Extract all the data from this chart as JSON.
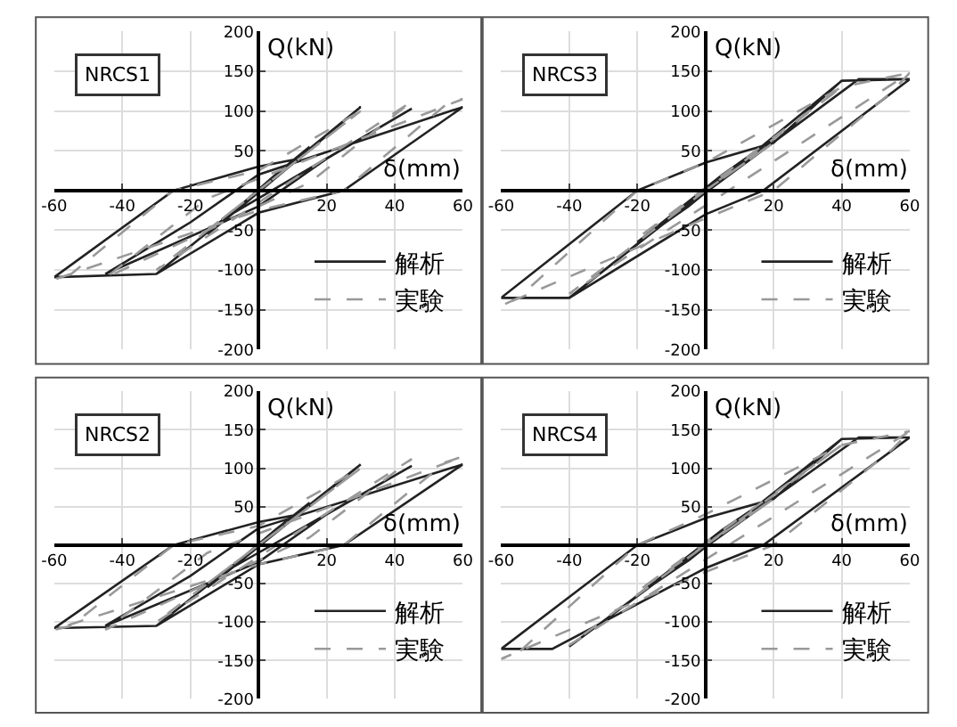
{
  "chart_data": [
    {
      "type": "line",
      "title": "NRCS1",
      "xlabel": "δ(mm)",
      "ylabel": "Q(kN)",
      "xlim": [
        -60,
        60
      ],
      "xticks": [
        -60,
        -40,
        -20,
        20,
        40,
        60
      ],
      "ylim": [
        -200,
        200
      ],
      "yticks": [
        -200,
        -150,
        -100,
        -50,
        50,
        100,
        150,
        200
      ],
      "grid": true,
      "legend": "bottom right",
      "series": [
        {
          "name": "解析",
          "color": "#222222",
          "line_style": "solid",
          "x": [
            0,
            15,
            5,
            -15,
            -5,
            30,
            10,
            -30,
            -10,
            45,
            20,
            0,
            -45,
            -20,
            0,
            60,
            25,
            0,
            -30,
            -60,
            -25,
            0,
            12,
            30
          ],
          "values": [
            0,
            55,
            20,
            -55,
            -20,
            105,
            35,
            -105,
            -35,
            103,
            40,
            -20,
            -105,
            -40,
            20,
            105,
            0,
            -28,
            -105,
            -109,
            0,
            30,
            40,
            105
          ]
        },
        {
          "name": "実験",
          "color": "#999999",
          "line_style": "dashed",
          "x": [
            0,
            15,
            -15,
            30,
            -30,
            45,
            15,
            -45,
            -15,
            60,
            55,
            25,
            0,
            -60,
            -55,
            -25,
            0,
            30
          ],
          "values": [
            0,
            50,
            -50,
            100,
            -100,
            112,
            10,
            -110,
            -10,
            115,
            108,
            0,
            -25,
            -112,
            -105,
            0,
            25,
            100
          ]
        }
      ]
    },
    {
      "type": "line",
      "title": "NRCS3",
      "xlabel": "δ(mm)",
      "ylabel": "Q(kN)",
      "xlim": [
        -60,
        60
      ],
      "xticks": [
        -60,
        -40,
        -20,
        20,
        40,
        60
      ],
      "ylim": [
        -200,
        200
      ],
      "yticks": [
        -200,
        -150,
        -100,
        -50,
        50,
        100,
        150,
        200
      ],
      "grid": true,
      "legend": "bottom right",
      "series": [
        {
          "name": "解析",
          "color": "#222222",
          "line_style": "solid",
          "x": [
            0,
            20,
            5,
            -20,
            -5,
            40,
            15,
            -40,
            -15,
            45,
            60,
            17,
            0,
            -40,
            -60,
            -20,
            0,
            20,
            40,
            60
          ],
          "values": [
            0,
            65,
            20,
            -65,
            -20,
            138,
            50,
            -135,
            -50,
            140,
            140,
            0,
            -30,
            -135,
            -135,
            0,
            35,
            60,
            138,
            140
          ]
        },
        {
          "name": "実験",
          "color": "#999999",
          "line_style": "dashed",
          "x": [
            0,
            20,
            -20,
            40,
            -40,
            60,
            55,
            20,
            0,
            -60,
            -55,
            -20,
            0,
            40,
            60
          ],
          "values": [
            0,
            60,
            -60,
            130,
            -130,
            148,
            125,
            0,
            -35,
            -145,
            -135,
            0,
            35,
            130,
            148
          ]
        }
      ]
    },
    {
      "type": "line",
      "title": "NRCS2",
      "xlabel": "δ(mm)",
      "ylabel": "Q(kN)",
      "xlim": [
        -60,
        60
      ],
      "xticks": [
        -60,
        -40,
        -20,
        20,
        40,
        60
      ],
      "ylim": [
        -200,
        200
      ],
      "yticks": [
        -200,
        -150,
        -100,
        -50,
        50,
        100,
        150,
        200
      ],
      "grid": true,
      "legend": "bottom right",
      "series": [
        {
          "name": "解析",
          "color": "#222222",
          "line_style": "solid",
          "x": [
            0,
            15,
            5,
            -15,
            -5,
            30,
            10,
            -30,
            -10,
            45,
            20,
            0,
            -45,
            -20,
            0,
            60,
            25,
            0,
            -30,
            -60,
            -25,
            0,
            12,
            30
          ],
          "values": [
            0,
            55,
            20,
            -55,
            -20,
            105,
            35,
            -105,
            -35,
            103,
            40,
            -22,
            -105,
            -40,
            22,
            105,
            0,
            -25,
            -105,
            -108,
            0,
            30,
            40,
            105
          ]
        },
        {
          "name": "実験",
          "color": "#999999",
          "line_style": "dashed",
          "x": [
            0,
            15,
            -15,
            30,
            -30,
            45,
            15,
            -45,
            -15,
            60,
            55,
            25,
            0,
            -60,
            -55,
            -25,
            0,
            30
          ],
          "values": [
            0,
            50,
            -50,
            100,
            -100,
            112,
            10,
            -110,
            -10,
            115,
            108,
            0,
            -25,
            -110,
            -105,
            0,
            25,
            100
          ]
        }
      ]
    },
    {
      "type": "line",
      "title": "NRCS4",
      "xlabel": "δ(mm)",
      "ylabel": "Q(kN)",
      "xlim": [
        -60,
        60
      ],
      "xticks": [
        -60,
        -40,
        -20,
        20,
        40,
        60
      ],
      "ylim": [
        -200,
        200
      ],
      "yticks": [
        -200,
        -150,
        -100,
        -50,
        50,
        100,
        150,
        200
      ],
      "grid": true,
      "legend": "bottom right",
      "series": [
        {
          "name": "解析",
          "color": "#222222",
          "line_style": "solid",
          "x": [
            0,
            20,
            5,
            -20,
            -5,
            40,
            15,
            -40,
            -15,
            45,
            60,
            17,
            0,
            -45,
            -60,
            -20,
            0,
            20,
            40,
            60
          ],
          "values": [
            0,
            65,
            20,
            -65,
            -20,
            138,
            50,
            -132,
            -50,
            140,
            140,
            0,
            -30,
            -135,
            -135,
            0,
            35,
            60,
            138,
            140
          ]
        },
        {
          "name": "実験",
          "color": "#999999",
          "line_style": "dashed",
          "x": [
            0,
            20,
            -20,
            40,
            -40,
            60,
            55,
            20,
            0,
            -60,
            -55,
            -20,
            0,
            40,
            60
          ],
          "values": [
            0,
            60,
            -60,
            130,
            -130,
            148,
            125,
            0,
            -35,
            -148,
            -140,
            0,
            40,
            130,
            148
          ]
        }
      ]
    }
  ]
}
